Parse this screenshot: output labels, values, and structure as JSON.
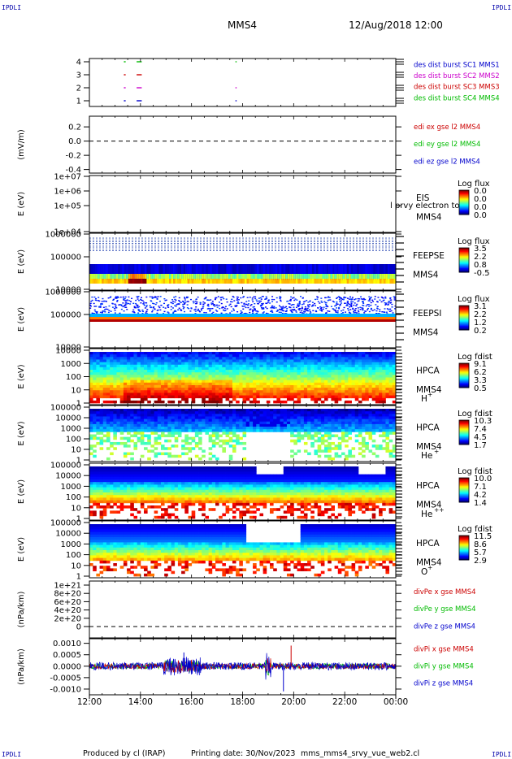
{
  "header": {
    "corner_label": "IPDLI",
    "spacecraft": "MMS4",
    "datetime": "12/Aug/2018 12:00"
  },
  "footer": {
    "produced_by": "Produced by cl (IRAP)",
    "printing_date": "Printing date: 30/Nov/2023",
    "script_name": "mms_mms4_srvy_vue_web2.cl"
  },
  "colors": {
    "mms1": "#0000cc",
    "mms2": "#cc00cc",
    "mms3": "#cc0000",
    "mms4": "#00bb00",
    "x": "#cc0000",
    "y": "#00bb00",
    "z": "#0000cc"
  },
  "chart_data": [
    {
      "id": "burst",
      "type": "scatter",
      "ylabel": "",
      "yticks": [
        "1",
        "2",
        "3",
        "4"
      ],
      "ylim": [
        0.5,
        4.5
      ],
      "legend": [
        {
          "text": "des dist burst SC1 MMS1",
          "color": "#0000cc"
        },
        {
          "text": "des dist burst SC2 MMS2",
          "color": "#cc00cc"
        },
        {
          "text": "des dist burst SC3 MMS3",
          "color": "#cc0000"
        },
        {
          "text": "des dist burst SC4 MMS4",
          "color": "#00bb00"
        }
      ],
      "segments": [
        {
          "sc": 4,
          "color": "#00bb00",
          "ranges": [
            [
              13.35,
              13.42
            ],
            [
              13.85,
              14.05
            ],
            [
              17.72,
              17.74
            ]
          ]
        },
        {
          "sc": 3,
          "color": "#cc0000",
          "ranges": [
            [
              13.35,
              13.42
            ],
            [
              13.85,
              14.05
            ]
          ]
        },
        {
          "sc": 2,
          "color": "#cc00cc",
          "ranges": [
            [
              13.35,
              13.42
            ],
            [
              13.85,
              14.05
            ],
            [
              17.72,
              17.74
            ]
          ]
        },
        {
          "sc": 1,
          "color": "#0000cc",
          "ranges": [
            [
              13.35,
              13.42
            ],
            [
              13.85,
              14.05
            ],
            [
              17.72,
              17.74
            ]
          ]
        }
      ]
    },
    {
      "id": "edi",
      "type": "line",
      "ylabel": "(mV/m)",
      "yticks": [
        "0.2",
        "0.0",
        "-0.2",
        "-0.4"
      ],
      "yvalues": [
        0.2,
        0.0,
        -0.2,
        -0.4
      ],
      "ylim": [
        -0.45,
        0.35
      ],
      "legend": [
        {
          "text": "edi ex gse l2 MMS4",
          "color": "#cc0000"
        },
        {
          "text": "edi ey gse l2 MMS4",
          "color": "#00bb00"
        },
        {
          "text": "edi ez gse l2 MMS4",
          "color": "#0000cc"
        }
      ]
    },
    {
      "id": "eis",
      "type": "heatmap",
      "ylabel": "E (eV)",
      "yticks": [
        "1e+07",
        "1e+06",
        "1e+05",
        "1e+04"
      ],
      "instrument": [
        "EIS",
        "MMS4"
      ],
      "overlay_text": "l prvy electron to",
      "colorbar": {
        "title": "Log flux",
        "labels": [
          "0.0",
          "0.0",
          "0.0",
          "0.0"
        ]
      }
    },
    {
      "id": "feepse",
      "type": "heatmap",
      "ylabel": "E (eV)",
      "yticks": [
        "1000000",
        "100000",
        "10000"
      ],
      "instrument": [
        "FEEPSE",
        "MMS4"
      ],
      "colorbar": {
        "title": "Log flux",
        "labels": [
          "3.5",
          "2.2",
          "0.8",
          "-0.5"
        ]
      }
    },
    {
      "id": "feepsi",
      "type": "heatmap",
      "ylabel": "E (eV)",
      "yticks": [
        "1000000",
        "100000",
        "10000"
      ],
      "instrument": [
        "FEEPSI",
        "MMS4"
      ],
      "colorbar": {
        "title": "Log flux",
        "labels": [
          "3.1",
          "2.2",
          "1.2",
          "0.2"
        ]
      }
    },
    {
      "id": "hpca_h",
      "type": "heatmap",
      "ylabel": "E (eV)",
      "yticks": [
        "10000",
        "1000",
        "100",
        "10",
        "1"
      ],
      "instrument": [
        "HPCA",
        "MMS4"
      ],
      "species_base": "H",
      "species_sup": "+",
      "colorbar": {
        "title": "Log fdist",
        "labels": [
          "9.1",
          "6.2",
          "3.3",
          "0.5"
        ]
      }
    },
    {
      "id": "hpca_he",
      "type": "heatmap",
      "ylabel": "E (eV)",
      "yticks": [
        "100000",
        "10000",
        "1000",
        "100",
        "10",
        "1"
      ],
      "instrument": [
        "HPCA",
        "MMS4"
      ],
      "species_base": "He",
      "species_sup": "+",
      "colorbar": {
        "title": "Log fdist",
        "labels": [
          "10.3",
          "7.4",
          "4.5",
          "1.7"
        ]
      }
    },
    {
      "id": "hpca_hepp",
      "type": "heatmap",
      "ylabel": "E (eV)",
      "yticks": [
        "100000",
        "10000",
        "1000",
        "100",
        "10",
        "1"
      ],
      "instrument": [
        "HPCA",
        "MMS4"
      ],
      "species_base": "He",
      "species_sup": "++",
      "colorbar": {
        "title": "Log fdist",
        "labels": [
          "10.0",
          "7.1",
          "4.2",
          "1.4"
        ]
      }
    },
    {
      "id": "hpca_o",
      "type": "heatmap",
      "ylabel": "E (eV)",
      "yticks": [
        "100000",
        "10000",
        "1000",
        "100",
        "10",
        "1"
      ],
      "instrument": [
        "HPCA",
        "MMS4"
      ],
      "species_base": "O",
      "species_sup": "+",
      "colorbar": {
        "title": "Log fdist",
        "labels": [
          "11.5",
          "8.6",
          "5.7",
          "2.9"
        ]
      }
    },
    {
      "id": "divpe",
      "type": "line",
      "ylabel": "(nPa/km)",
      "yticks": [
        "1e+21",
        "8e+20",
        "6e+20",
        "4e+20",
        "2e+20",
        "0"
      ],
      "legend": [
        {
          "text": "divPe x gse MMS4",
          "color": "#cc0000"
        },
        {
          "text": "divPe y gse MMS4",
          "color": "#00bb00"
        },
        {
          "text": "divPe z gse MMS4",
          "color": "#0000cc"
        }
      ]
    },
    {
      "id": "divpi",
      "type": "line",
      "ylabel": "(nPa/km)",
      "yticks": [
        "0.0010",
        "0.0005",
        "0.0000",
        "-0.0005",
        "-0.0010"
      ],
      "yvalues": [
        0.001,
        0.0005,
        0,
        -0.0005,
        -0.001
      ],
      "ylim": [
        -0.00125,
        0.0012
      ],
      "legend": [
        {
          "text": "divPi x gse MMS4",
          "color": "#cc0000"
        },
        {
          "text": "divPi y gse MMS4",
          "color": "#00bb00"
        },
        {
          "text": "divPi z gse MMS4",
          "color": "#0000cc"
        }
      ]
    }
  ],
  "time_axis": {
    "ticks": [
      "12:00",
      "14:00",
      "16:00",
      "18:00",
      "20:00",
      "22:00",
      "00:00"
    ],
    "hours": [
      12,
      14,
      16,
      18,
      20,
      22,
      24
    ]
  }
}
